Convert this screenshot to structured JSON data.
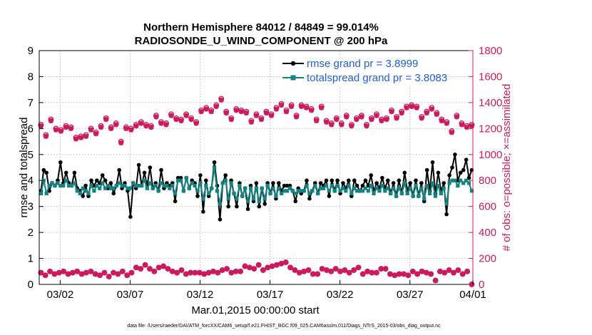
{
  "chart_data": {
    "type": "line",
    "title": "Northern Hemisphere 84012 / 84849 = 99.014%",
    "subtitle": "RADIOSONDE_U_WIND_COMPONENT @ 200 hPa",
    "xlabel": "Mar.01,2015 00:00:00 start",
    "ylabel_left": "rmse and totalspread",
    "ylabel_right": "# of obs: o=possible; ×=assimilated",
    "footer": "data file: /Users/raeder/DAI/ATM_forcXX/CAM6_setup/f.e21.FHIST_BGC.f09_025.CAM6assim.011/Diags_NTrS_2015-03/obs_diag_output.nc",
    "xlim": [
      0.5,
      31.5
    ],
    "ylim_left": [
      0,
      9
    ],
    "ylim_right": [
      0,
      1800
    ],
    "xticks": [
      {
        "x": 2,
        "label": "03/02"
      },
      {
        "x": 7,
        "label": "03/07"
      },
      {
        "x": 12,
        "label": "03/12"
      },
      {
        "x": 17,
        "label": "03/17"
      },
      {
        "x": 22,
        "label": "03/22"
      },
      {
        "x": 27,
        "label": "03/27"
      },
      {
        "x": 32,
        "label": "04/01"
      }
    ],
    "yticks_left": [
      "0",
      "1",
      "2",
      "3",
      "4",
      "5",
      "6",
      "7",
      "8",
      "9"
    ],
    "yticks_right": [
      "0",
      "200",
      "400",
      "600",
      "800",
      "1000",
      "1200",
      "1400",
      "1600",
      "1800"
    ],
    "colors": {
      "rmse": "#000000",
      "spread": "#128383",
      "obs": "#cc1a5e",
      "legend_text": "#1f5fd6"
    },
    "series": [
      {
        "name": "rmse",
        "legend": "rmse grand pr = 3.8999",
        "values": [
          3.6,
          4.4,
          4.3,
          3.6,
          3.9,
          3.8,
          4.0,
          4.7,
          3.9,
          4.3,
          3.9,
          3.8,
          4.3,
          3.7,
          3.6,
          3.4,
          3.8,
          3.4,
          4.0,
          3.8,
          4.0,
          3.9,
          4.2,
          4.0,
          3.7,
          3.9,
          3.5,
          3.8,
          4.4,
          3.7,
          3.9,
          3.6,
          2.6,
          3.9,
          3.7,
          4.6,
          3.8,
          4.3,
          3.8,
          4.5,
          3.7,
          3.9,
          3.6,
          4.4,
          3.7,
          3.9,
          3.8,
          3.9,
          3.2,
          4.1,
          4.1,
          3.6,
          4.1,
          3.7,
          4.0,
          3.9,
          3.4,
          4.2,
          2.8,
          4.0,
          3.4,
          3.7,
          4.7,
          3.8,
          2.5,
          3.9,
          4.2,
          3.0,
          4.0,
          3.5,
          3.0,
          3.9,
          3.4,
          3.7,
          2.9,
          3.8,
          3.2,
          3.9,
          3.0,
          3.7,
          3.1,
          3.9,
          3.5,
          3.9,
          3.3,
          3.9,
          3.6,
          3.8,
          3.8,
          3.8,
          3.6,
          3.2,
          3.7,
          3.5,
          3.6,
          4.0,
          3.3,
          3.6,
          3.9,
          3.5,
          3.9,
          3.8,
          4.0,
          3.4,
          4.0,
          3.6,
          4.0,
          3.5,
          3.9,
          3.7,
          4.0,
          3.4,
          4.0,
          3.8,
          3.6,
          3.8,
          4.0,
          3.8,
          4.2,
          3.6,
          3.9,
          3.7,
          4.1,
          3.7,
          4.0,
          3.5,
          3.9,
          3.4,
          4.0,
          3.5,
          4.3,
          3.6,
          3.9,
          3.4,
          4.0,
          3.4,
          3.9,
          3.2,
          4.4,
          3.6,
          4.7,
          3.5,
          4.3,
          3.6,
          3.9,
          2.7,
          4.2,
          4.5,
          5.0,
          4.0,
          4.3,
          4.4,
          4.8,
          4.1,
          4.4
        ]
      },
      {
        "name": "totalspread",
        "legend": "totalspread grand pr = 3.8083",
        "values": [
          3.5,
          4.0,
          3.5,
          3.8,
          3.9,
          3.8,
          3.9,
          3.8,
          3.8,
          4.0,
          3.8,
          3.8,
          3.9,
          3.6,
          3.5,
          3.7,
          3.6,
          3.5,
          3.8,
          3.6,
          3.8,
          3.7,
          3.9,
          3.7,
          3.8,
          3.7,
          3.7,
          3.8,
          3.9,
          3.8,
          3.8,
          3.7,
          3.7,
          3.9,
          3.8,
          3.8,
          3.8,
          4.0,
          3.7,
          3.9,
          3.7,
          3.8,
          3.6,
          3.9,
          3.8,
          3.8,
          3.7,
          3.8,
          3.5,
          4.0,
          4.0,
          3.6,
          4.1,
          3.7,
          3.9,
          3.8,
          3.6,
          3.9,
          3.3,
          3.8,
          3.5,
          3.7,
          4.5,
          3.6,
          3.1,
          3.9,
          4.0,
          3.3,
          3.9,
          3.5,
          3.3,
          3.8,
          3.4,
          3.7,
          3.2,
          3.7,
          3.3,
          3.7,
          3.2,
          3.7,
          3.3,
          3.8,
          3.5,
          3.7,
          3.4,
          3.7,
          3.5,
          3.6,
          3.6,
          3.7,
          3.6,
          3.5,
          3.6,
          3.6,
          3.6,
          3.8,
          3.5,
          3.6,
          3.8,
          3.5,
          3.7,
          3.7,
          3.8,
          3.6,
          3.8,
          3.6,
          3.8,
          3.6,
          3.7,
          3.6,
          3.8,
          3.5,
          3.7,
          3.6,
          3.6,
          3.6,
          3.7,
          3.6,
          3.8,
          3.5,
          3.7,
          3.6,
          3.8,
          3.6,
          3.7,
          3.5,
          3.7,
          3.4,
          3.7,
          3.5,
          3.9,
          3.5,
          3.7,
          3.4,
          3.8,
          3.4,
          3.7,
          3.3,
          3.8,
          3.5,
          3.9,
          3.4,
          3.8,
          3.5,
          3.7,
          3.1,
          3.9,
          4.0,
          4.0,
          3.8,
          4.0,
          3.9,
          4.0,
          3.9,
          3.6
        ]
      }
    ],
    "obs_possible_top": [
      1230,
      1150,
      1270,
      1200,
      1190,
      1220,
      1210,
      1130,
      1140,
      1150,
      1200,
      1170,
      1220,
      1280,
      1210,
      1240,
      1100,
      1210,
      1200,
      1230,
      1250,
      1230,
      1220,
      1300,
      1250,
      1240,
      1310,
      1280,
      1270,
      1310,
      1280,
      1250,
      1340,
      1360,
      1340,
      1380,
      1430,
      1330,
      1280,
      1350,
      1340,
      1330,
      1260,
      1310,
      1280,
      1330,
      1310,
      1360,
      1390,
      1340,
      1380,
      1300,
      1380,
      1370,
      1350,
      1270,
      1370,
      1260,
      1240,
      1280,
      1240,
      1300,
      1230,
      1280,
      1300,
      1230,
      1280,
      1310,
      1270,
      1280,
      1340,
      1290,
      1330,
      1370,
      1380,
      1370,
      1290,
      1330,
      1360,
      1320,
      1270,
      1250,
      1180,
      1300,
      1240,
      1220,
      1230
    ],
    "obs_assim_top": [
      1220,
      1140,
      1260,
      1190,
      1180,
      1210,
      1200,
      1120,
      1130,
      1140,
      1190,
      1160,
      1210,
      1270,
      1200,
      1230,
      1090,
      1200,
      1190,
      1220,
      1240,
      1220,
      1210,
      1290,
      1240,
      1230,
      1300,
      1270,
      1260,
      1300,
      1270,
      1240,
      1330,
      1350,
      1330,
      1370,
      1420,
      1320,
      1270,
      1340,
      1330,
      1320,
      1250,
      1300,
      1270,
      1320,
      1300,
      1350,
      1380,
      1330,
      1370,
      1290,
      1370,
      1360,
      1340,
      1260,
      1360,
      1250,
      1230,
      1270,
      1230,
      1290,
      1220,
      1270,
      1290,
      1220,
      1270,
      1300,
      1260,
      1270,
      1330,
      1280,
      1320,
      1360,
      1370,
      1360,
      1280,
      1320,
      1350,
      1310,
      1260,
      1240,
      1170,
      1290,
      1230,
      1210,
      1220
    ],
    "obs_bottom": [
      90,
      70,
      100,
      80,
      90,
      100,
      80,
      90,
      100,
      80,
      90,
      100,
      80,
      70,
      90,
      60,
      90,
      80,
      100,
      70,
      90,
      130,
      120,
      150,
      120,
      100,
      130,
      140,
      120,
      100,
      90,
      110,
      80,
      90,
      90,
      90,
      80,
      90,
      100,
      90,
      110,
      120,
      90,
      100,
      100,
      140,
      130,
      120,
      150,
      110,
      130,
      140,
      150,
      160,
      170,
      130,
      110,
      90,
      100,
      110,
      80,
      80,
      120,
      110,
      100,
      120,
      100,
      110,
      90,
      110,
      130,
      80,
      100,
      90,
      90,
      120,
      120,
      80,
      70,
      80,
      80,
      70,
      100,
      80,
      100,
      90,
      80,
      30,
      100,
      90,
      110,
      90,
      110,
      80,
      100,
      0
    ]
  }
}
